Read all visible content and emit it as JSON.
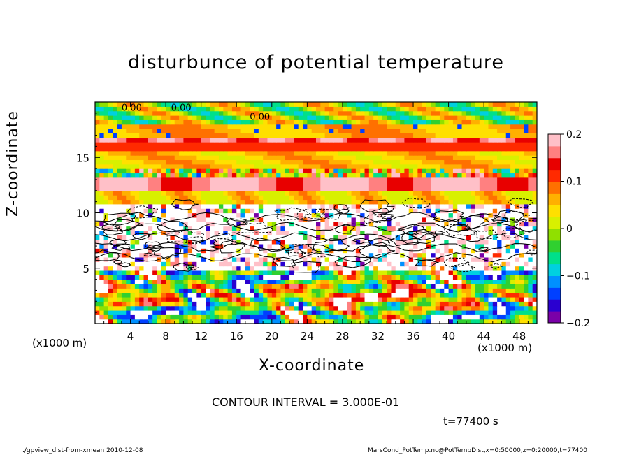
{
  "chart_data": {
    "type": "heatmap",
    "title": "disturbunce of potential temperature",
    "xlabel": "X-coordinate",
    "ylabel": "Z-coordinate",
    "x_unit_label": "(x1000 m)",
    "xlim": [
      0,
      50
    ],
    "ylim": [
      0,
      20
    ],
    "x_ticks": [
      4,
      8,
      12,
      16,
      20,
      24,
      28,
      32,
      36,
      40,
      44,
      48
    ],
    "y_ticks": [
      5,
      10,
      15
    ],
    "colorbar": {
      "range": [
        -0.2,
        0.2
      ],
      "ticks": [
        0.2,
        0.1,
        0,
        -0.1,
        -0.2
      ],
      "tick_labels": [
        "0.2",
        "0.1",
        "0",
        "−0.1",
        "−0.2"
      ],
      "colors": [
        "#7a00a8",
        "#2a00d0",
        "#0040ff",
        "#0090ff",
        "#00d0e0",
        "#00e08a",
        "#30d030",
        "#90e000",
        "#d8f000",
        "#ffe000",
        "#ffb000",
        "#ff7000",
        "#ff2a00",
        "#e80000",
        "#ff8080",
        "#ffc0c8"
      ]
    },
    "contour_labels": [
      "0.00",
      "0.00",
      "0.00"
    ],
    "contour_interval_text": "CONTOUR INTERVAL = 3.000E-01",
    "time_text": "t=77400 s",
    "footer_left": "./gpview_dist-from-xmean  2010-12-08",
    "footer_right": "MarsCond_PotTemp.nc@PotTempDist,x=0:50000,z=0:20000,t=77400"
  }
}
